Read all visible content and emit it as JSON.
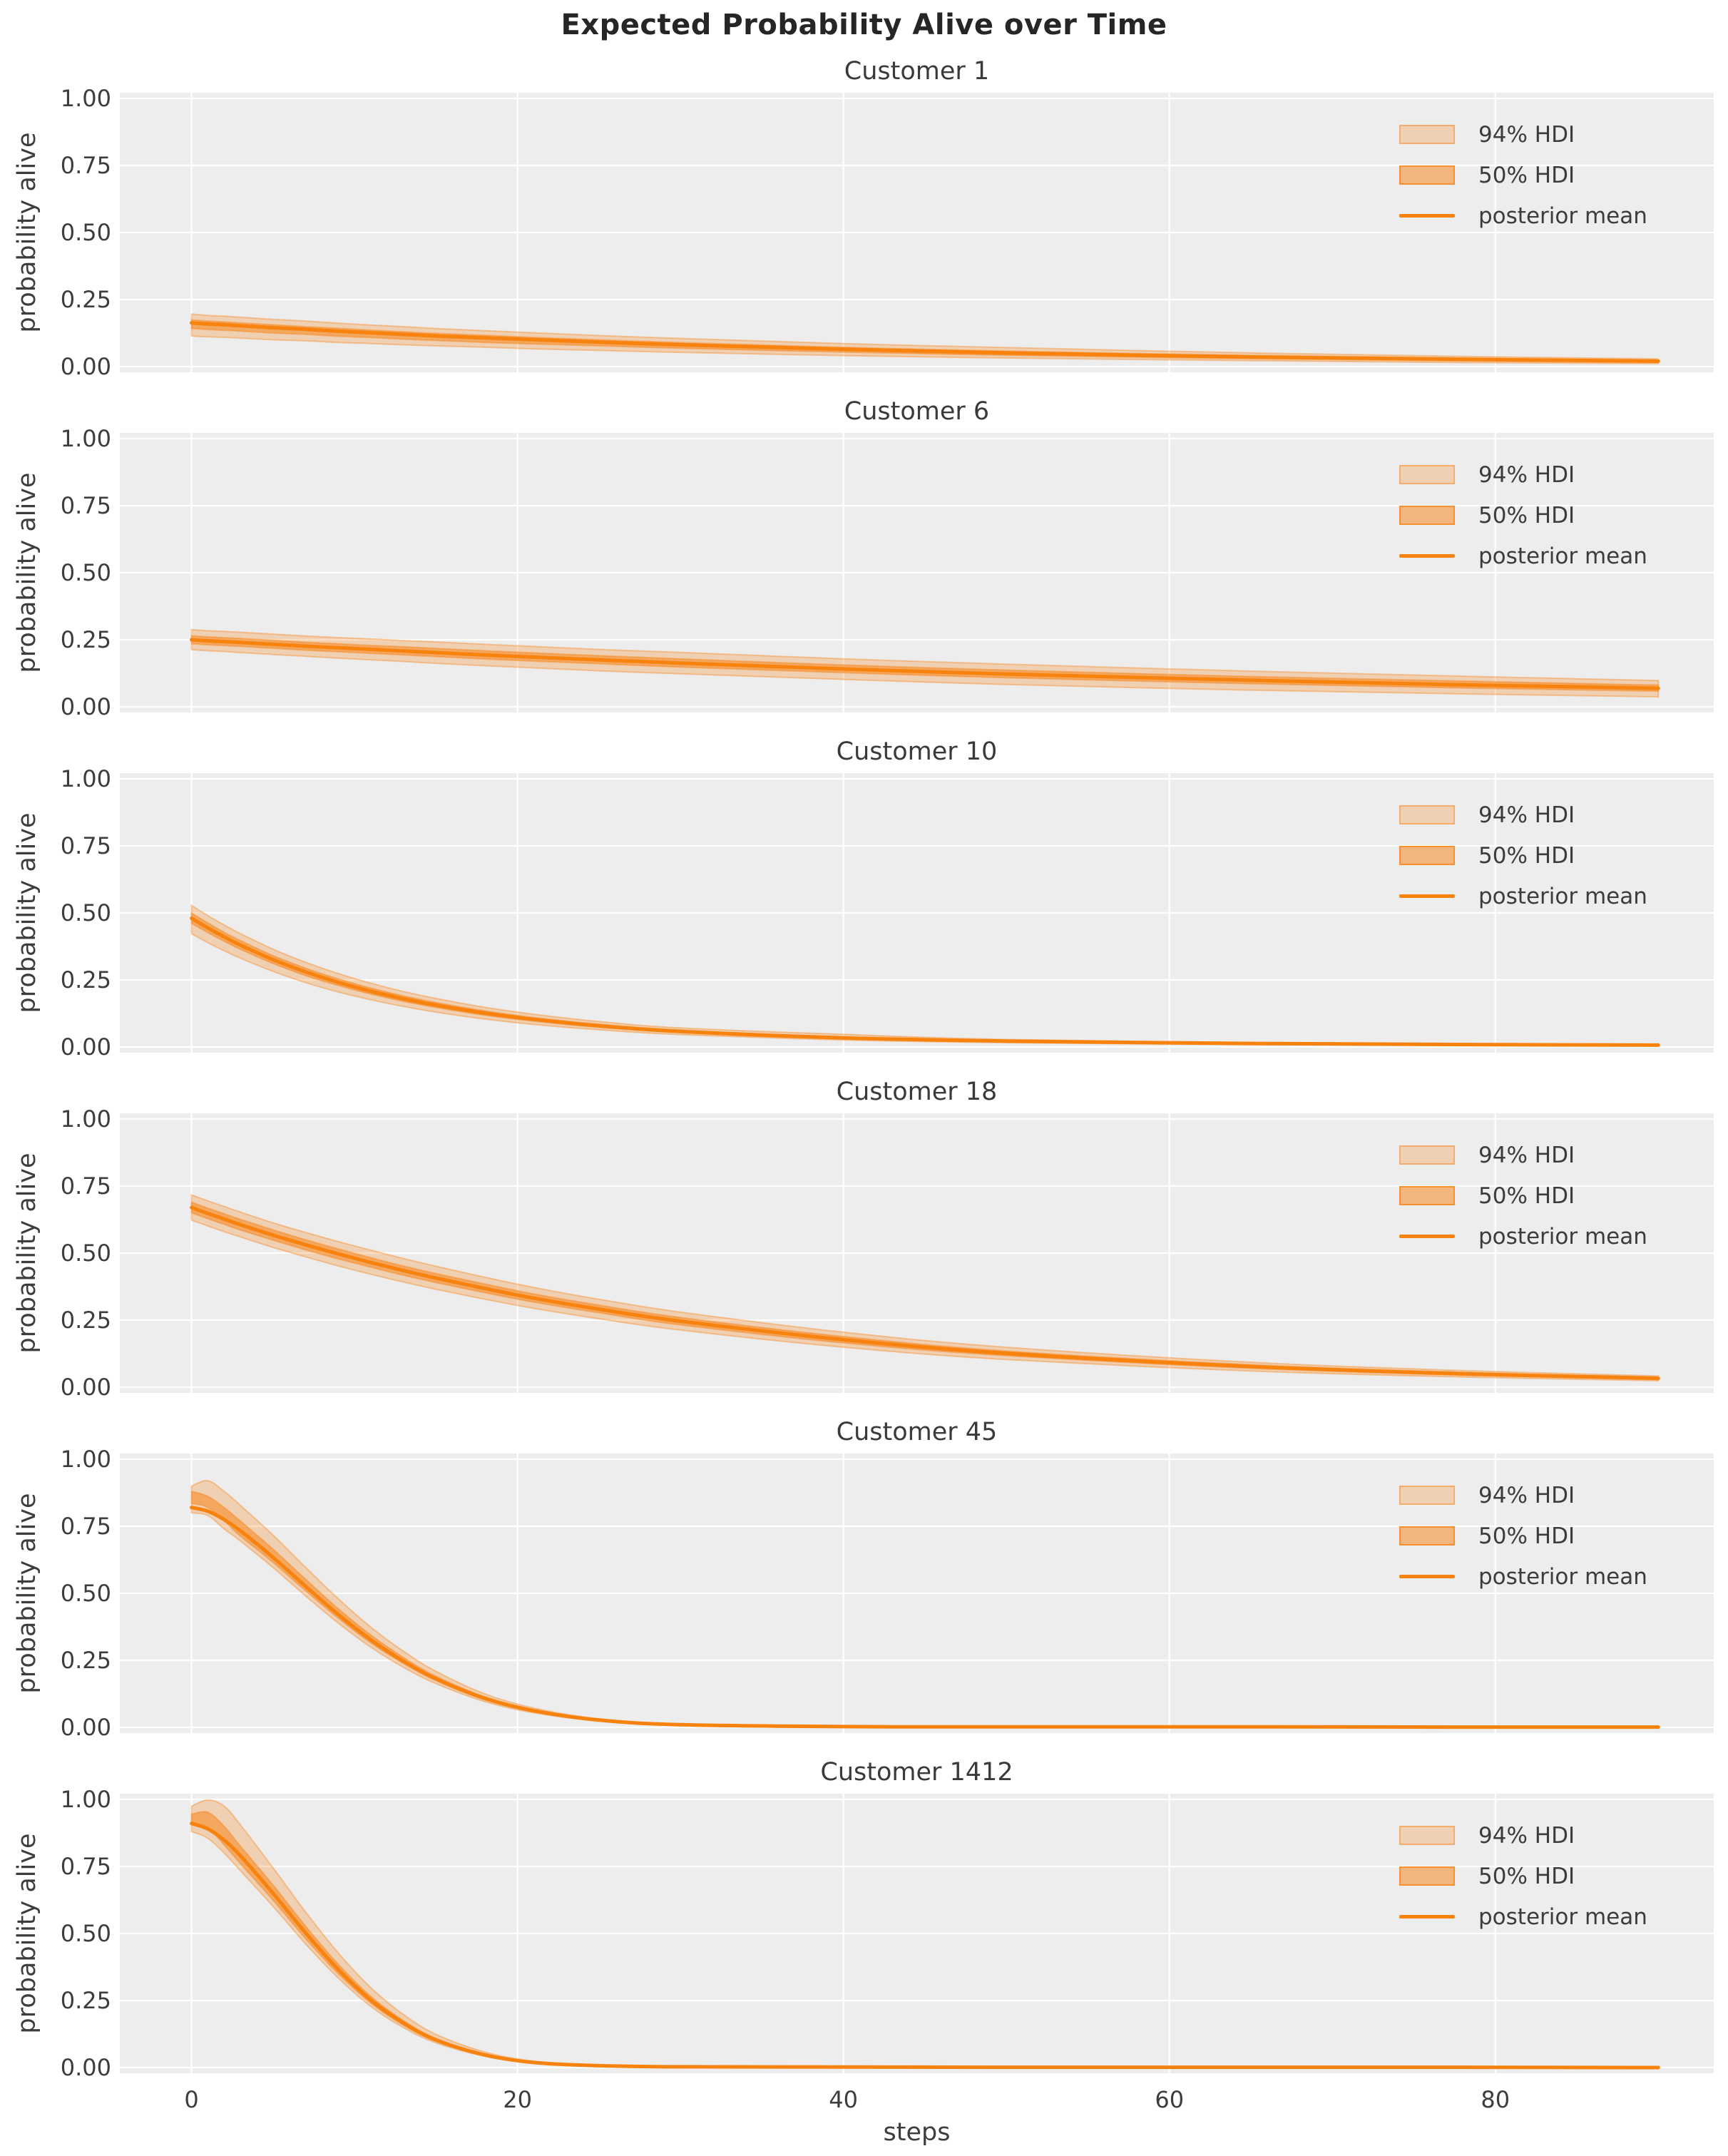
{
  "figure": {
    "title": "Expected Probability Alive over Time",
    "xlabel": "steps",
    "ylabel": "probability alive",
    "background": "#ffffff",
    "panel_background": "#ededed",
    "grid_color": "#ffffff",
    "text_color": "#3d3d3d",
    "title_color": "#262626",
    "line_color": "#f8820e",
    "hdi94_fill": "rgba(248,130,20,0.27)",
    "hdi50_fill": "rgba(248,130,20,0.52)",
    "band_edge": "rgba(248,130,20,0.38)"
  },
  "legend": {
    "position": "upper right",
    "items": [
      {
        "label": "94% HDI",
        "type": "patch94"
      },
      {
        "label": "50% HDI",
        "type": "patch50"
      },
      {
        "label": "posterior mean",
        "type": "line"
      }
    ]
  },
  "axes": {
    "xlim": [
      -4.4,
      93.4
    ],
    "ylim": [
      0,
      1
    ],
    "grid": true,
    "yticks": [
      {
        "value": 1.0,
        "label": "1.00"
      },
      {
        "value": 0.75,
        "label": "0.75"
      },
      {
        "value": 0.5,
        "label": "0.50"
      },
      {
        "value": 0.25,
        "label": "0.25"
      },
      {
        "value": 0.0,
        "label": "0.00"
      }
    ],
    "xticks": [
      {
        "value": 0,
        "label": "0"
      },
      {
        "value": 20,
        "label": "20"
      },
      {
        "value": 40,
        "label": "40"
      },
      {
        "value": 60,
        "label": "60"
      },
      {
        "value": 80,
        "label": "80"
      }
    ]
  },
  "chart_data": [
    {
      "type": "line",
      "title": "Customer 1",
      "x": [
        0,
        1,
        2,
        3,
        5,
        7,
        9,
        11,
        13,
        15,
        18,
        21,
        25,
        30,
        40,
        50,
        65,
        78,
        90
      ],
      "posterior_mean": [
        0.163,
        0.159,
        0.156,
        0.152,
        0.145,
        0.139,
        0.132,
        0.126,
        0.12,
        0.114,
        0.107,
        0.1,
        0.091,
        0.081,
        0.065,
        0.051,
        0.036,
        0.027,
        0.02
      ],
      "hdi94_upper": [
        0.196,
        0.191,
        0.188,
        0.184,
        0.176,
        0.17,
        0.162,
        0.155,
        0.149,
        0.142,
        0.134,
        0.126,
        0.116,
        0.105,
        0.086,
        0.071,
        0.051,
        0.038,
        0.029
      ],
      "hdi94_lower": [
        0.114,
        0.111,
        0.109,
        0.106,
        0.1,
        0.096,
        0.09,
        0.086,
        0.081,
        0.077,
        0.072,
        0.066,
        0.06,
        0.053,
        0.041,
        0.032,
        0.022,
        0.015,
        0.011
      ],
      "hdi50_upper": [
        0.174,
        0.17,
        0.167,
        0.163,
        0.156,
        0.149,
        0.143,
        0.136,
        0.13,
        0.124,
        0.117,
        0.109,
        0.1,
        0.09,
        0.072,
        0.058,
        0.042,
        0.031,
        0.024
      ],
      "hdi50_lower": [
        0.142,
        0.138,
        0.135,
        0.132,
        0.125,
        0.12,
        0.113,
        0.108,
        0.102,
        0.097,
        0.09,
        0.084,
        0.077,
        0.068,
        0.054,
        0.042,
        0.029,
        0.021,
        0.016
      ]
    },
    {
      "type": "line",
      "title": "Customer 6",
      "x": [
        0,
        1,
        2,
        3,
        5,
        7,
        9,
        11,
        13,
        15,
        18,
        21,
        25,
        30,
        40,
        50,
        65,
        78,
        90
      ],
      "posterior_mean": [
        0.25,
        0.246,
        0.243,
        0.24,
        0.233,
        0.226,
        0.22,
        0.214,
        0.208,
        0.202,
        0.193,
        0.185,
        0.175,
        0.163,
        0.141,
        0.122,
        0.099,
        0.082,
        0.069
      ],
      "hdi94_upper": [
        0.288,
        0.284,
        0.281,
        0.278,
        0.271,
        0.264,
        0.258,
        0.253,
        0.247,
        0.242,
        0.233,
        0.225,
        0.214,
        0.203,
        0.179,
        0.159,
        0.133,
        0.114,
        0.098
      ],
      "hdi94_lower": [
        0.213,
        0.209,
        0.206,
        0.202,
        0.195,
        0.188,
        0.181,
        0.175,
        0.169,
        0.162,
        0.153,
        0.145,
        0.134,
        0.123,
        0.102,
        0.083,
        0.062,
        0.048,
        0.037
      ],
      "hdi50_upper": [
        0.265,
        0.261,
        0.258,
        0.255,
        0.248,
        0.241,
        0.235,
        0.229,
        0.224,
        0.218,
        0.209,
        0.201,
        0.191,
        0.179,
        0.156,
        0.137,
        0.113,
        0.096,
        0.081
      ],
      "hdi50_lower": [
        0.235,
        0.231,
        0.228,
        0.225,
        0.218,
        0.211,
        0.205,
        0.199,
        0.193,
        0.187,
        0.178,
        0.17,
        0.16,
        0.148,
        0.127,
        0.108,
        0.086,
        0.07,
        0.058
      ]
    },
    {
      "type": "line",
      "title": "Customer 10",
      "x": [
        0,
        1,
        2,
        3,
        5,
        7,
        9,
        11,
        13,
        15,
        18,
        21,
        25,
        30,
        40,
        50,
        65,
        78,
        90
      ],
      "posterior_mean": [
        0.48,
        0.444,
        0.411,
        0.38,
        0.326,
        0.28,
        0.241,
        0.208,
        0.18,
        0.156,
        0.126,
        0.103,
        0.079,
        0.058,
        0.034,
        0.022,
        0.013,
        0.009,
        0.007
      ],
      "hdi94_upper": [
        0.528,
        0.49,
        0.455,
        0.423,
        0.365,
        0.316,
        0.274,
        0.238,
        0.207,
        0.181,
        0.148,
        0.122,
        0.095,
        0.071,
        0.047,
        0.028,
        0.017,
        0.013,
        0.01
      ],
      "hdi94_lower": [
        0.422,
        0.389,
        0.359,
        0.331,
        0.282,
        0.24,
        0.205,
        0.176,
        0.151,
        0.13,
        0.104,
        0.084,
        0.064,
        0.046,
        0.026,
        0.016,
        0.009,
        0.006,
        0.004
      ],
      "hdi50_upper": [
        0.499,
        0.463,
        0.428,
        0.397,
        0.341,
        0.294,
        0.254,
        0.22,
        0.191,
        0.166,
        0.135,
        0.11,
        0.085,
        0.063,
        0.037,
        0.024,
        0.015,
        0.011,
        0.008
      ],
      "hdi50_lower": [
        0.461,
        0.426,
        0.394,
        0.364,
        0.311,
        0.266,
        0.229,
        0.197,
        0.17,
        0.147,
        0.118,
        0.096,
        0.073,
        0.054,
        0.031,
        0.019,
        0.011,
        0.008,
        0.006
      ]
    },
    {
      "type": "line",
      "title": "Customer 18",
      "x": [
        0,
        1,
        2,
        3,
        5,
        7,
        9,
        11,
        13,
        15,
        18,
        21,
        25,
        30,
        40,
        50,
        65,
        78,
        90
      ],
      "posterior_mean": [
        0.67,
        0.648,
        0.627,
        0.606,
        0.567,
        0.531,
        0.497,
        0.465,
        0.435,
        0.407,
        0.368,
        0.332,
        0.291,
        0.246,
        0.177,
        0.126,
        0.077,
        0.05,
        0.033
      ],
      "hdi94_upper": [
        0.717,
        0.695,
        0.674,
        0.653,
        0.613,
        0.577,
        0.543,
        0.511,
        0.48,
        0.451,
        0.41,
        0.372,
        0.328,
        0.28,
        0.205,
        0.149,
        0.093,
        0.062,
        0.042
      ],
      "hdi94_lower": [
        0.623,
        0.601,
        0.58,
        0.56,
        0.521,
        0.486,
        0.452,
        0.421,
        0.392,
        0.365,
        0.328,
        0.294,
        0.255,
        0.213,
        0.149,
        0.103,
        0.06,
        0.038,
        0.024
      ],
      "hdi50_upper": [
        0.69,
        0.668,
        0.647,
        0.626,
        0.587,
        0.55,
        0.516,
        0.483,
        0.452,
        0.424,
        0.385,
        0.348,
        0.306,
        0.26,
        0.189,
        0.135,
        0.084,
        0.055,
        0.037
      ],
      "hdi50_lower": [
        0.65,
        0.628,
        0.607,
        0.586,
        0.548,
        0.512,
        0.478,
        0.447,
        0.417,
        0.39,
        0.352,
        0.317,
        0.277,
        0.232,
        0.165,
        0.117,
        0.07,
        0.045,
        0.03
      ]
    },
    {
      "type": "line",
      "title": "Customer 45",
      "x": [
        0,
        1,
        2,
        3,
        5,
        7,
        9,
        11,
        13,
        15,
        18,
        21,
        25,
        30,
        40,
        50,
        65,
        78,
        90
      ],
      "posterior_mean": [
        0.82,
        0.806,
        0.775,
        0.733,
        0.634,
        0.526,
        0.421,
        0.327,
        0.247,
        0.181,
        0.108,
        0.062,
        0.027,
        0.01,
        0.003,
        0.002,
        0.002,
        0.001,
        0.001
      ],
      "hdi94_upper": [
        0.9,
        0.92,
        0.88,
        0.828,
        0.717,
        0.597,
        0.48,
        0.374,
        0.284,
        0.209,
        0.125,
        0.072,
        0.032,
        0.012,
        0.004,
        0.003,
        0.002,
        0.002,
        0.002
      ],
      "hdi94_lower": [
        0.8,
        0.79,
        0.74,
        0.695,
        0.596,
        0.49,
        0.389,
        0.299,
        0.224,
        0.163,
        0.096,
        0.054,
        0.024,
        0.008,
        0.002,
        0.001,
        0.001,
        0.001,
        0.0
      ],
      "hdi50_upper": [
        0.88,
        0.862,
        0.82,
        0.77,
        0.665,
        0.553,
        0.443,
        0.345,
        0.261,
        0.191,
        0.114,
        0.066,
        0.029,
        0.011,
        0.003,
        0.002,
        0.002,
        0.001,
        0.001
      ],
      "hdi50_lower": [
        0.835,
        0.82,
        0.77,
        0.713,
        0.615,
        0.509,
        0.407,
        0.315,
        0.238,
        0.174,
        0.103,
        0.059,
        0.026,
        0.009,
        0.002,
        0.002,
        0.001,
        0.001,
        0.0
      ]
    },
    {
      "type": "line",
      "title": "Customer 1412",
      "x": [
        0,
        1,
        2,
        3,
        5,
        7,
        9,
        11,
        13,
        15,
        18,
        21,
        25,
        30,
        40,
        50,
        65,
        78,
        90
      ],
      "posterior_mean": [
        0.91,
        0.89,
        0.848,
        0.79,
        0.65,
        0.502,
        0.366,
        0.252,
        0.166,
        0.103,
        0.047,
        0.019,
        0.007,
        0.003,
        0.002,
        0.001,
        0.001,
        0.001,
        0.0
      ],
      "hdi94_upper": [
        0.975,
        0.998,
        0.975,
        0.905,
        0.745,
        0.58,
        0.428,
        0.298,
        0.198,
        0.124,
        0.058,
        0.024,
        0.009,
        0.004,
        0.002,
        0.002,
        0.001,
        0.001,
        0.001
      ],
      "hdi94_lower": [
        0.88,
        0.855,
        0.8,
        0.734,
        0.601,
        0.461,
        0.334,
        0.228,
        0.149,
        0.092,
        0.042,
        0.017,
        0.006,
        0.002,
        0.001,
        0.001,
        0.0,
        0.0,
        0.0
      ],
      "hdi50_upper": [
        0.945,
        0.952,
        0.9,
        0.826,
        0.681,
        0.528,
        0.386,
        0.266,
        0.176,
        0.109,
        0.05,
        0.021,
        0.008,
        0.003,
        0.002,
        0.001,
        0.001,
        0.0,
        0.0
      ],
      "hdi50_lower": [
        0.915,
        0.895,
        0.83,
        0.76,
        0.624,
        0.48,
        0.35,
        0.24,
        0.158,
        0.098,
        0.045,
        0.018,
        0.006,
        0.003,
        0.001,
        0.001,
        0.0,
        0.0,
        0.0
      ]
    }
  ]
}
